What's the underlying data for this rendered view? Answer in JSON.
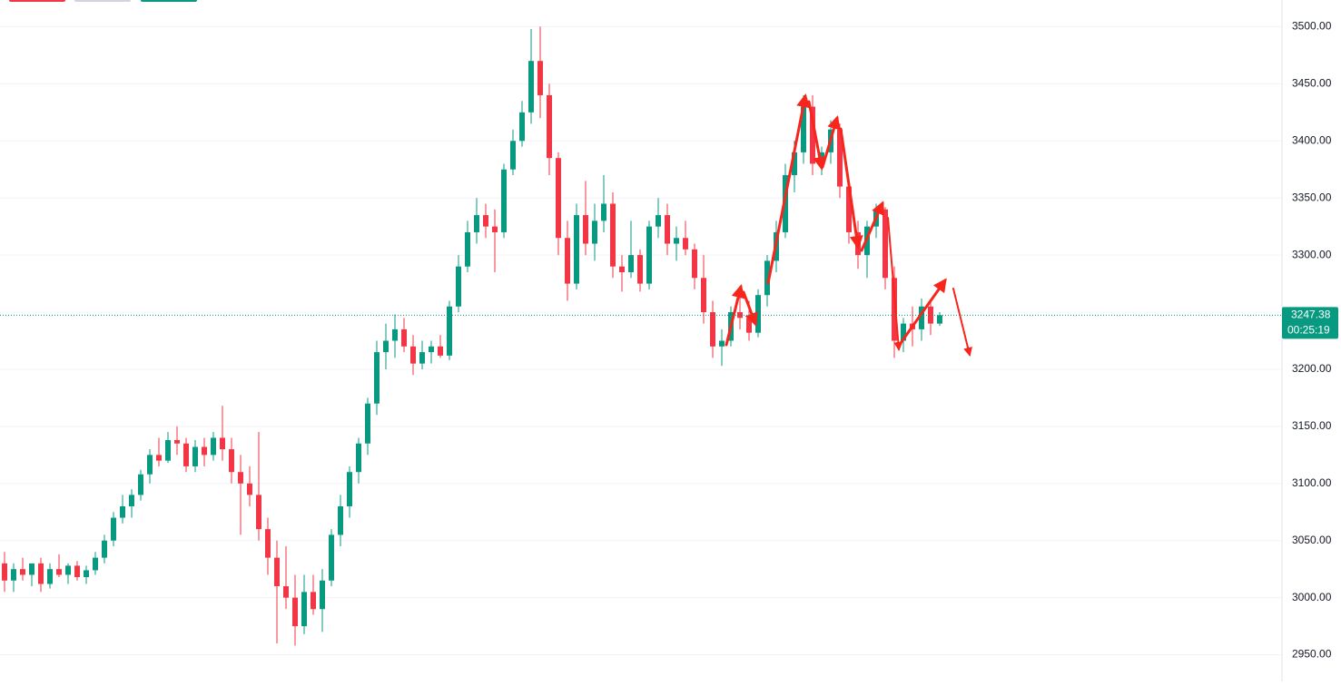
{
  "chart_data": {
    "type": "candlestick",
    "ylim": [
      2926.61,
      3523.39
    ],
    "yticks": [
      {
        "value": 2950,
        "label": "2950.00"
      },
      {
        "value": 3000,
        "label": "3000.00"
      },
      {
        "value": 3050,
        "label": "3050.00"
      },
      {
        "value": 3100,
        "label": "3100.00"
      },
      {
        "value": 3150,
        "label": "3150.00"
      },
      {
        "value": 3200,
        "label": "3200.00"
      },
      {
        "value": 3250,
        "label": "3250.00"
      },
      {
        "value": 3300,
        "label": "3300.00"
      },
      {
        "value": 3350,
        "label": "3350.00"
      },
      {
        "value": 3400,
        "label": "3400.00"
      },
      {
        "value": 3450,
        "label": "3450.00"
      },
      {
        "value": 3500,
        "label": "3500.00"
      }
    ],
    "grid": true,
    "up_color": "#089981",
    "down_color": "#f23645",
    "last_price": 3247.38,
    "countdown": "00:25:19",
    "ohlc": [
      [
        3030,
        3040,
        3005,
        3015
      ],
      [
        3015,
        3030,
        3005,
        3025
      ],
      [
        3025,
        3035,
        3015,
        3020
      ],
      [
        3020,
        3030,
        3010,
        3030
      ],
      [
        3030,
        3035,
        3005,
        3012
      ],
      [
        3012,
        3030,
        3008,
        3025
      ],
      [
        3025,
        3038,
        3018,
        3020
      ],
      [
        3020,
        3030,
        3012,
        3028
      ],
      [
        3028,
        3032,
        3015,
        3018
      ],
      [
        3018,
        3028,
        3012,
        3024
      ],
      [
        3024,
        3040,
        3020,
        3035
      ],
      [
        3035,
        3055,
        3030,
        3050
      ],
      [
        3050,
        3075,
        3045,
        3070
      ],
      [
        3070,
        3090,
        3065,
        3080
      ],
      [
        3080,
        3095,
        3070,
        3090
      ],
      [
        3090,
        3112,
        3085,
        3108
      ],
      [
        3108,
        3130,
        3100,
        3125
      ],
      [
        3125,
        3140,
        3115,
        3120
      ],
      [
        3120,
        3145,
        3118,
        3138
      ],
      [
        3138,
        3150,
        3125,
        3135
      ],
      [
        3135,
        3140,
        3110,
        3115
      ],
      [
        3115,
        3138,
        3110,
        3132
      ],
      [
        3132,
        3140,
        3115,
        3125
      ],
      [
        3125,
        3145,
        3120,
        3140
      ],
      [
        3140,
        3168,
        3120,
        3130
      ],
      [
        3130,
        3140,
        3100,
        3110
      ],
      [
        3110,
        3125,
        3055,
        3100
      ],
      [
        3100,
        3115,
        3080,
        3090
      ],
      [
        3090,
        3145,
        3050,
        3060
      ],
      [
        3060,
        3070,
        3020,
        3035
      ],
      [
        3035,
        3050,
        2960,
        3010
      ],
      [
        3010,
        3045,
        2990,
        3000
      ],
      [
        3000,
        3020,
        2958,
        2975
      ],
      [
        2975,
        3020,
        2968,
        3005
      ],
      [
        3005,
        3020,
        2985,
        2990
      ],
      [
        2990,
        3025,
        2970,
        3015
      ],
      [
        3015,
        3060,
        3010,
        3055
      ],
      [
        3055,
        3090,
        3045,
        3080
      ],
      [
        3080,
        3115,
        3070,
        3110
      ],
      [
        3110,
        3140,
        3100,
        3135
      ],
      [
        3135,
        3175,
        3125,
        3170
      ],
      [
        3170,
        3225,
        3160,
        3215
      ],
      [
        3215,
        3240,
        3200,
        3225
      ],
      [
        3225,
        3248,
        3210,
        3235
      ],
      [
        3235,
        3245,
        3215,
        3220
      ],
      [
        3220,
        3230,
        3195,
        3205
      ],
      [
        3205,
        3225,
        3200,
        3215
      ],
      [
        3215,
        3225,
        3205,
        3220
      ],
      [
        3220,
        3230,
        3210,
        3212
      ],
      [
        3212,
        3260,
        3208,
        3255
      ],
      [
        3255,
        3300,
        3250,
        3290
      ],
      [
        3290,
        3330,
        3285,
        3320
      ],
      [
        3320,
        3350,
        3310,
        3335
      ],
      [
        3335,
        3345,
        3315,
        3325
      ],
      [
        3325,
        3340,
        3285,
        3320
      ],
      [
        3320,
        3380,
        3315,
        3375
      ],
      [
        3375,
        3410,
        3370,
        3400
      ],
      [
        3400,
        3435,
        3395,
        3425
      ],
      [
        3425,
        3498,
        3415,
        3470
      ],
      [
        3470,
        3500,
        3420,
        3440
      ],
      [
        3440,
        3450,
        3370,
        3385
      ],
      [
        3385,
        3390,
        3300,
        3315
      ],
      [
        3315,
        3330,
        3260,
        3275
      ],
      [
        3275,
        3345,
        3270,
        3335
      ],
      [
        3335,
        3365,
        3300,
        3310
      ],
      [
        3310,
        3345,
        3295,
        3330
      ],
      [
        3330,
        3370,
        3320,
        3345
      ],
      [
        3345,
        3355,
        3280,
        3290
      ],
      [
        3290,
        3300,
        3268,
        3285
      ],
      [
        3285,
        3330,
        3280,
        3300
      ],
      [
        3300,
        3305,
        3268,
        3275
      ],
      [
        3275,
        3330,
        3270,
        3325
      ],
      [
        3325,
        3350,
        3315,
        3335
      ],
      [
        3335,
        3345,
        3300,
        3310
      ],
      [
        3310,
        3325,
        3295,
        3315
      ],
      [
        3315,
        3330,
        3300,
        3305
      ],
      [
        3305,
        3310,
        3270,
        3280
      ],
      [
        3280,
        3300,
        3240,
        3250
      ],
      [
        3250,
        3260,
        3210,
        3220
      ],
      [
        3220,
        3235,
        3203,
        3225
      ],
      [
        3225,
        3255,
        3220,
        3250
      ],
      [
        3250,
        3268,
        3235,
        3245
      ],
      [
        3245,
        3260,
        3225,
        3232
      ],
      [
        3232,
        3270,
        3228,
        3265
      ],
      [
        3265,
        3300,
        3255,
        3295
      ],
      [
        3295,
        3330,
        3285,
        3320
      ],
      [
        3320,
        3380,
        3315,
        3370
      ],
      [
        3370,
        3400,
        3355,
        3390
      ],
      [
        3390,
        3440,
        3380,
        3430
      ],
      [
        3430,
        3440,
        3370,
        3380
      ],
      [
        3380,
        3395,
        3370,
        3390
      ],
      [
        3390,
        3418,
        3380,
        3410
      ],
      [
        3410,
        3415,
        3350,
        3360
      ],
      [
        3360,
        3365,
        3310,
        3320
      ],
      [
        3320,
        3330,
        3288,
        3300
      ],
      [
        3300,
        3330,
        3280,
        3325
      ],
      [
        3325,
        3345,
        3315,
        3340
      ],
      [
        3340,
        3342,
        3270,
        3280
      ],
      [
        3280,
        3290,
        3210,
        3225
      ],
      [
        3225,
        3245,
        3215,
        3240
      ],
      [
        3240,
        3255,
        3220,
        3235
      ],
      [
        3235,
        3262,
        3225,
        3255
      ],
      [
        3255,
        3260,
        3230,
        3240
      ],
      [
        3240,
        3250,
        3238,
        3247.38
      ]
    ]
  }
}
